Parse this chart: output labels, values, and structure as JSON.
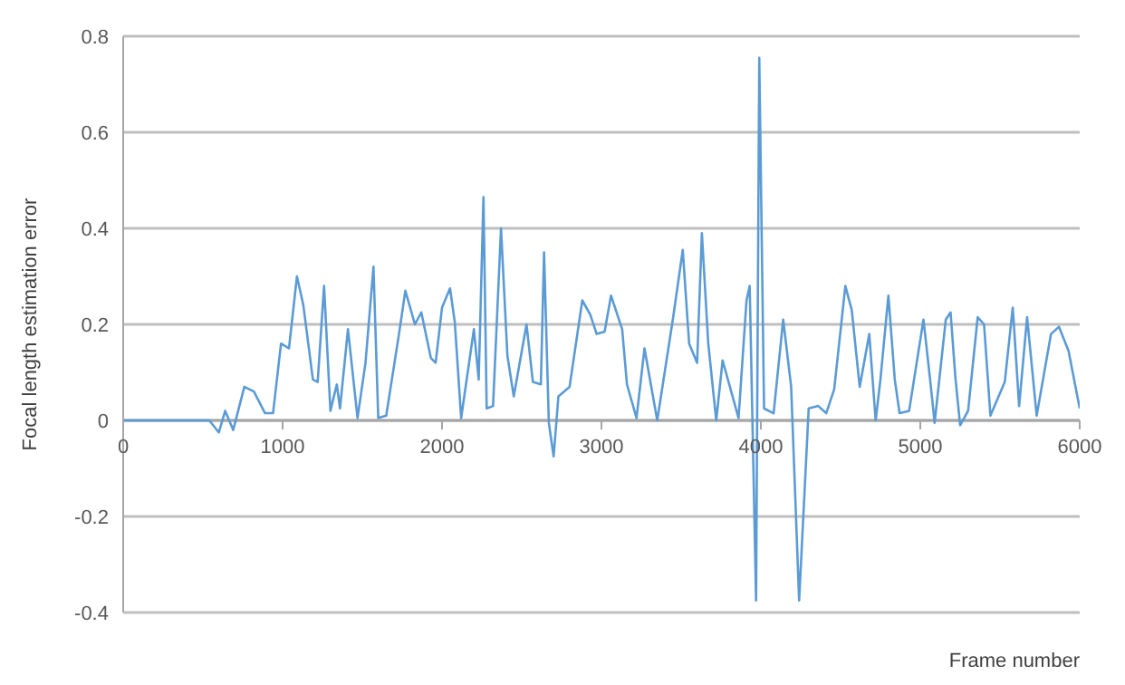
{
  "chart_data": {
    "type": "line",
    "xlabel": "Frame number",
    "ylabel": "Focal length estimation error",
    "xlim": [
      0,
      6000
    ],
    "xticks": [
      0,
      1000,
      2000,
      3000,
      4000,
      5000,
      6000
    ],
    "ylim": [
      -0.4,
      0.8
    ],
    "yticks": [
      -0.4,
      -0.2,
      0,
      0.2,
      0.4,
      0.6,
      0.8
    ],
    "grid": "y",
    "marker": "none",
    "line_style": "solid",
    "x": [
      0,
      540,
      600,
      640,
      690,
      760,
      820,
      890,
      940,
      990,
      1040,
      1090,
      1130,
      1190,
      1220,
      1260,
      1300,
      1340,
      1360,
      1410,
      1470,
      1520,
      1570,
      1600,
      1650,
      1730,
      1770,
      1830,
      1870,
      1930,
      1960,
      2000,
      2050,
      2080,
      2120,
      2200,
      2230,
      2260,
      2280,
      2320,
      2370,
      2410,
      2450,
      2530,
      2570,
      2620,
      2640,
      2670,
      2700,
      2730,
      2800,
      2880,
      2930,
      2970,
      3020,
      3060,
      3130,
      3160,
      3220,
      3270,
      3350,
      3450,
      3510,
      3550,
      3600,
      3630,
      3670,
      3720,
      3760,
      3860,
      3910,
      3930,
      3970,
      3990,
      4020,
      4080,
      4140,
      4190,
      4240,
      4300,
      4360,
      4410,
      4460,
      4530,
      4570,
      4620,
      4680,
      4720,
      4750,
      4800,
      4840,
      4870,
      4930,
      5020,
      5060,
      5090,
      5160,
      5190,
      5220,
      5250,
      5300,
      5360,
      5400,
      5440,
      5530,
      5580,
      5620,
      5670,
      5730,
      5820,
      5870,
      5930,
      6000
    ],
    "series": [
      {
        "color": "#5b9bd5",
        "values": [
          0,
          0,
          -0.025,
          0.02,
          -0.02,
          0.07,
          0.06,
          0.015,
          0.015,
          0.16,
          0.15,
          0.3,
          0.24,
          0.085,
          0.08,
          0.28,
          0.02,
          0.075,
          0.025,
          0.19,
          0.005,
          0.12,
          0.32,
          0.005,
          0.01,
          0.18,
          0.27,
          0.2,
          0.225,
          0.13,
          0.12,
          0.235,
          0.275,
          0.205,
          0.005,
          0.19,
          0.085,
          0.465,
          0.025,
          0.03,
          0.4,
          0.135,
          0.05,
          0.2,
          0.08,
          0.075,
          0.35,
          -0.005,
          -0.075,
          0.05,
          0.07,
          0.25,
          0.22,
          0.18,
          0.185,
          0.26,
          0.19,
          0.075,
          0.005,
          0.15,
          0,
          0.215,
          0.355,
          0.16,
          0.12,
          0.39,
          0.16,
          0,
          0.125,
          0.005,
          0.25,
          0.28,
          -0.375,
          0.755,
          0.025,
          0.015,
          0.21,
          0.07,
          -0.375,
          0.025,
          0.03,
          0.015,
          0.065,
          0.28,
          0.23,
          0.07,
          0.18,
          0,
          0.085,
          0.26,
          0.085,
          0.015,
          0.02,
          0.21,
          0.09,
          -0.005,
          0.21,
          0.225,
          0.09,
          -0.01,
          0.02,
          0.215,
          0.2,
          0.01,
          0.08,
          0.235,
          0.03,
          0.215,
          0.01,
          0.18,
          0.195,
          0.145,
          0.025
        ]
      }
    ]
  }
}
